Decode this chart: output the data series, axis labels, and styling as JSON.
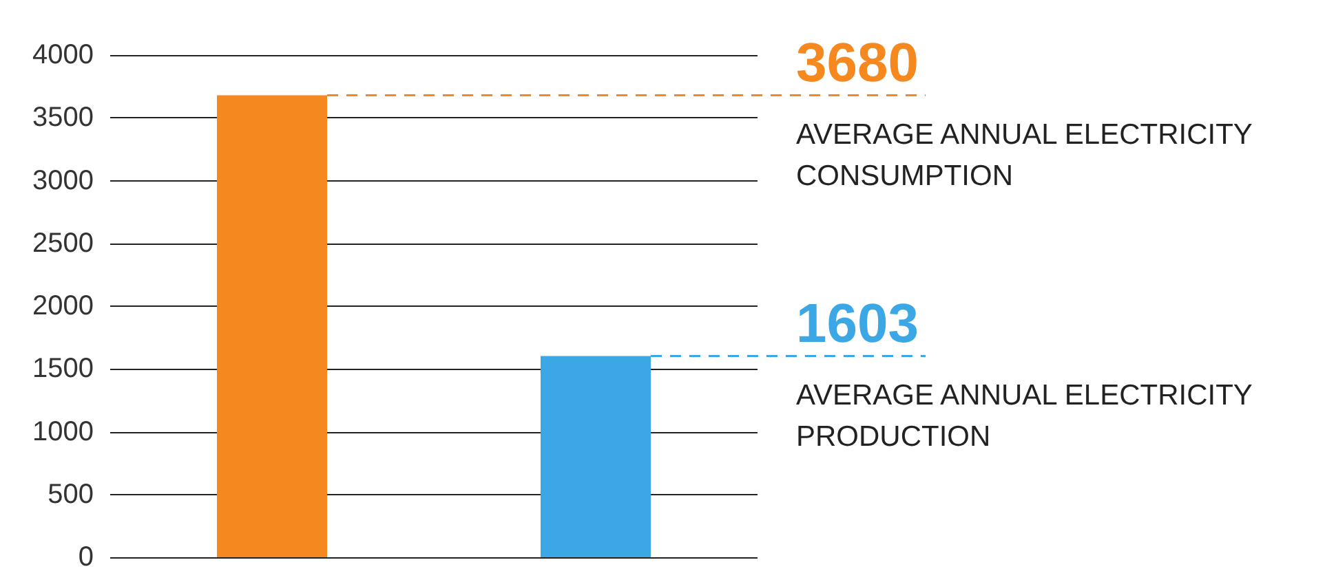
{
  "chart_data": {
    "type": "bar",
    "categories": [
      null,
      null
    ],
    "values": [
      3680,
      1603
    ],
    "colors": [
      "#f5881f",
      "#3ba7e4"
    ],
    "ylim": [
      0,
      4000
    ],
    "yticks": [
      0,
      500,
      1000,
      1500,
      2000,
      2500,
      3000,
      3500,
      4000
    ],
    "grid": "y",
    "tick_labels": "y",
    "annotations": [
      {
        "text": "3680",
        "y": 3680
      },
      "AVERAGE ANNUAL ELECTRICITY CONSUMPTION",
      {
        "text": "1603",
        "y": 1603
      },
      "AVERAGE ANNUAL ELECTRICITY PRODUCTION"
    ],
    "ref_lines": [
      {
        "axis": "y",
        "value": 3680,
        "color": "#f5881f",
        "line_style": "dashed"
      },
      {
        "axis": "y",
        "value": 1603,
        "color": "#3ba7e4",
        "line_style": "dashed"
      }
    ]
  }
}
